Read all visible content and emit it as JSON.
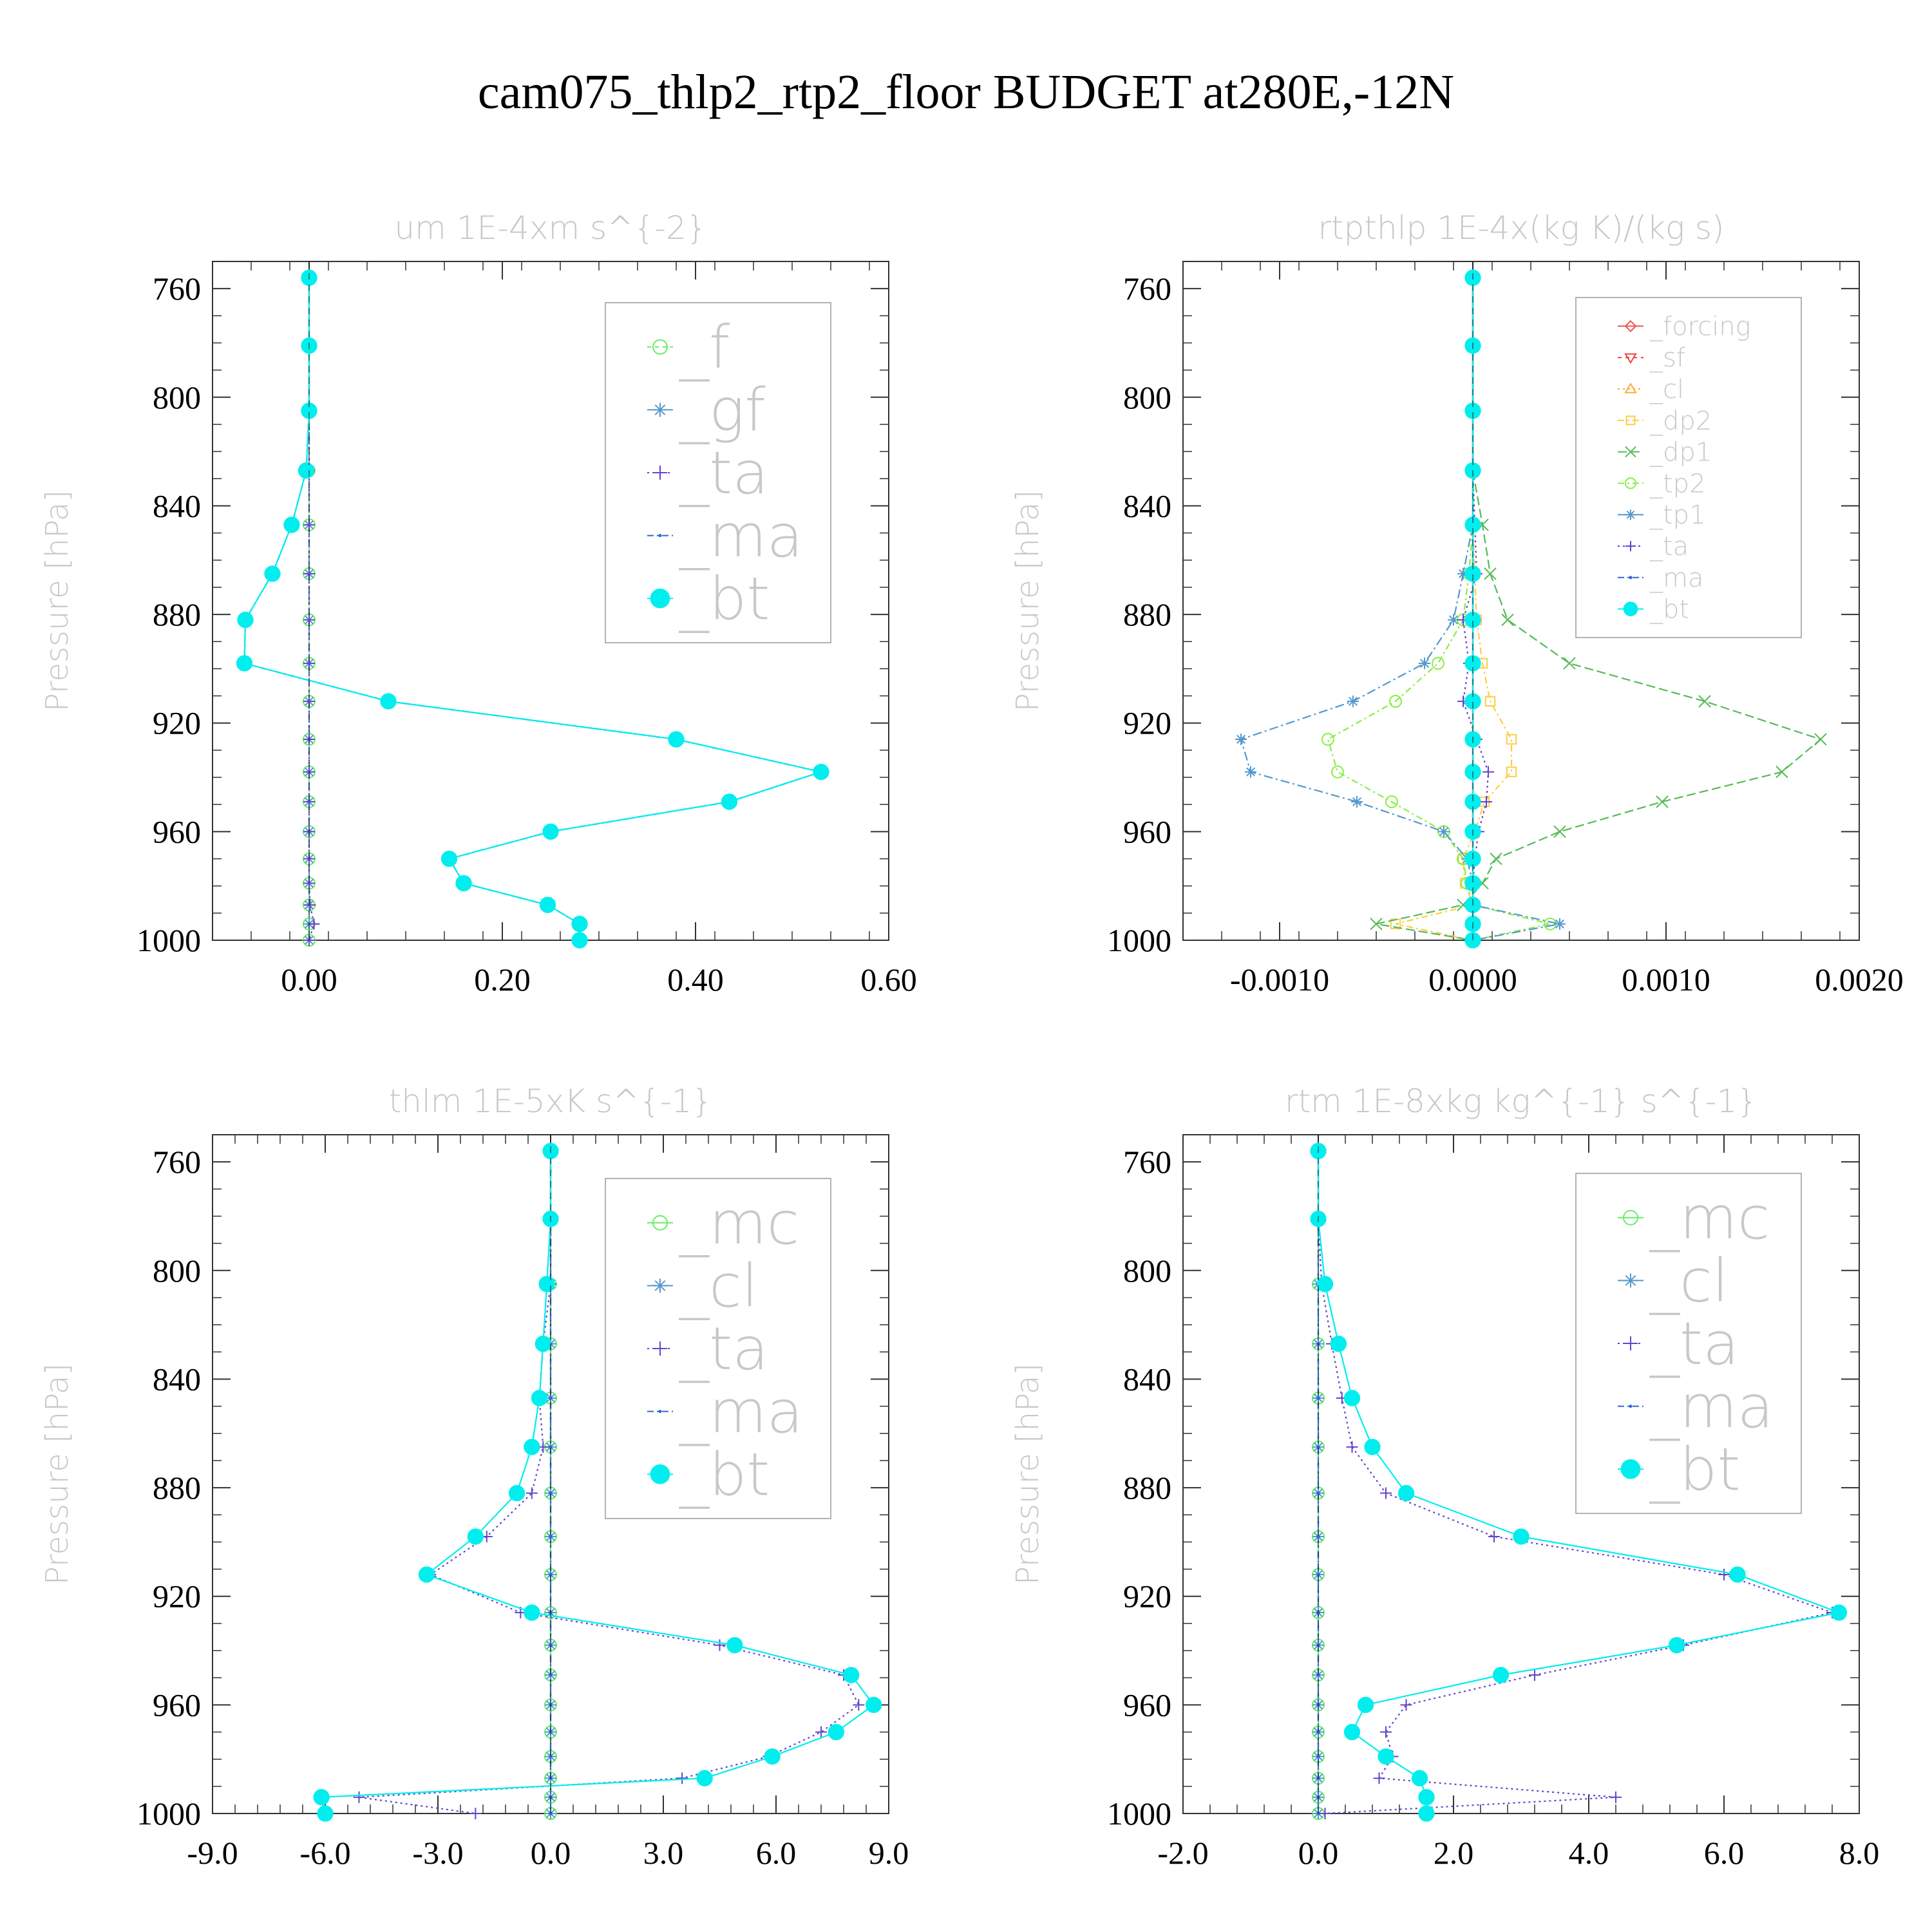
{
  "title": "cam075_thlp2_rtp2_floor  BUDGET at280E,-12N",
  "chart_data": [
    {
      "type": "line",
      "title": "um   1E-4xm s^{-2}",
      "ylabel": "Pressure [hPa]",
      "xlim": [
        -0.1,
        0.6
      ],
      "xticks": [
        0.0,
        0.2,
        0.4,
        0.6
      ],
      "xtick_labels": [
        "0.00",
        "0.20",
        "0.40",
        "0.60"
      ],
      "ylim": [
        750,
        1000
      ],
      "yticks": [
        760,
        800,
        840,
        880,
        920,
        960,
        1000
      ],
      "ytick_labels": [
        "760",
        "800",
        "840",
        "880",
        "920",
        "960",
        "1000"
      ],
      "levels": [
        756,
        781,
        805,
        827,
        847,
        865,
        882,
        898,
        912,
        926,
        938,
        949,
        960,
        970,
        979,
        987,
        994,
        1000
      ],
      "legend_font": 92,
      "series": [
        {
          "name": "_f",
          "color": "#66ee66",
          "marker": "circle-open",
          "dash": "6,6",
          "values": [
            0,
            0,
            0,
            0,
            0,
            0,
            0,
            0,
            0,
            0,
            0,
            0,
            0,
            0,
            0,
            0,
            0,
            0
          ]
        },
        {
          "name": "_gf",
          "color": "#5599cc",
          "marker": "star",
          "dash": "14,5,3,5",
          "values": [
            0,
            0,
            0,
            0,
            0,
            0,
            0,
            0,
            0,
            0,
            0,
            0,
            0,
            0,
            0,
            0,
            0,
            0
          ]
        },
        {
          "name": "_ta",
          "color": "#6644cc",
          "marker": "plus",
          "dash": "3,5",
          "values": [
            0,
            0,
            0,
            0,
            0,
            0,
            0,
            0,
            0,
            0,
            0,
            0,
            0,
            0,
            0,
            0.001,
            0.005,
            0.0
          ]
        },
        {
          "name": "_ma",
          "color": "#3366cc",
          "marker": "dot",
          "dash": "10,5,3,5",
          "values": [
            0,
            0,
            0,
            -0.003,
            -0.018,
            -0.038,
            -0.066,
            -0.067,
            0.082,
            0.38,
            0.53,
            0.435,
            0.25,
            0.145,
            0.16,
            0.247,
            0.28,
            0.28
          ]
        },
        {
          "name": "_bt",
          "color": "#00eeee",
          "marker": "filled-circle",
          "dash": "",
          "values": [
            0,
            0,
            0,
            -0.003,
            -0.018,
            -0.038,
            -0.066,
            -0.067,
            0.082,
            0.38,
            0.53,
            0.435,
            0.25,
            0.145,
            0.16,
            0.247,
            0.28,
            0.28
          ]
        }
      ]
    },
    {
      "type": "line",
      "title": "rtpthlp   1E-4x(kg K)/(kg s)",
      "ylabel": "Pressure [hPa]",
      "xlim": [
        -0.0015,
        0.002
      ],
      "xticks": [
        -0.001,
        0.0,
        0.001,
        0.002
      ],
      "xtick_labels": [
        "-0.0010",
        "0.0000",
        "0.0010",
        "0.0020"
      ],
      "ylim": [
        750,
        1000
      ],
      "yticks": [
        760,
        800,
        840,
        880,
        920,
        960,
        1000
      ],
      "ytick_labels": [
        "760",
        "800",
        "840",
        "880",
        "920",
        "960",
        "1000"
      ],
      "levels": [
        756,
        781,
        805,
        827,
        847,
        865,
        882,
        898,
        912,
        926,
        938,
        949,
        960,
        970,
        979,
        987,
        994,
        1000
      ],
      "legend_font": 40,
      "series": [
        {
          "name": "_forcing",
          "color": "#ee5555",
          "marker": "diamond",
          "dash": "",
          "values": [
            0,
            0,
            0,
            0,
            0,
            0,
            0,
            0,
            0,
            0,
            0,
            0,
            0,
            0,
            0,
            0,
            0,
            0
          ]
        },
        {
          "name": "_sf",
          "color": "#ee4444",
          "marker": "triangle-down",
          "dash": "6,6",
          "values": [
            0,
            0,
            0,
            0,
            0,
            0,
            0,
            0,
            0,
            0,
            0,
            0,
            0,
            0,
            0,
            0,
            0,
            0
          ]
        },
        {
          "name": "_cl",
          "color": "#ffaa33",
          "marker": "triangle-up",
          "dash": "3,5",
          "values": [
            0,
            0,
            0,
            0,
            0,
            0,
            0,
            0,
            0,
            0,
            0,
            0,
            0,
            0,
            0,
            0,
            0,
            0
          ]
        },
        {
          "name": "_dp2",
          "color": "#ffcc44",
          "marker": "square",
          "dash": "10,5,3,5",
          "values": [
            0,
            0,
            0,
            0,
            0,
            1e-05,
            2e-05,
            5e-05,
            9e-05,
            0.0002,
            0.0002,
            6e-05,
            1e-05,
            -5e-05,
            -4e-05,
            0.0,
            -0.0004,
            0
          ]
        },
        {
          "name": "_dp1",
          "color": "#55bb55",
          "marker": "cross",
          "dash": "14,6",
          "values": [
            0,
            0,
            0,
            0,
            5e-05,
            9e-05,
            0.00018,
            0.0005,
            0.0012,
            0.0018,
            0.0016,
            0.00098,
            0.00045,
            0.00012,
            5e-05,
            -5e-05,
            -0.0005,
            0
          ]
        },
        {
          "name": "_tp2",
          "color": "#88ee44",
          "marker": "circle-open",
          "dash": "10,5,3,5",
          "values": [
            0,
            0,
            0,
            0,
            0,
            -2e-05,
            -5e-05,
            -0.00018,
            -0.0004,
            -0.00075,
            -0.0007,
            -0.00042,
            -0.00015,
            -5e-05,
            -3e-05,
            0,
            0.0004,
            0
          ]
        },
        {
          "name": "_tp1",
          "color": "#5599cc",
          "marker": "star",
          "dash": "14,5,3,5",
          "values": [
            0,
            0,
            0,
            0,
            0,
            -5e-05,
            -0.0001,
            -0.00025,
            -0.00062,
            -0.0012,
            -0.00115,
            -0.0006,
            -0.00015,
            -3e-05,
            0,
            0,
            0.00045,
            0
          ]
        },
        {
          "name": "_ta",
          "color": "#6644cc",
          "marker": "plus",
          "dash": "3,5",
          "values": [
            0,
            0,
            0,
            0,
            1e-05,
            2e-05,
            -5e-05,
            -2e-05,
            -5e-05,
            2e-05,
            8e-05,
            7e-05,
            3e-05,
            1e-05,
            0,
            0,
            0,
            0
          ]
        },
        {
          "name": "_ma",
          "color": "#3366cc",
          "marker": "dot",
          "dash": "10,5,3,5",
          "values": [
            0,
            0,
            0,
            0,
            0,
            0,
            0,
            0,
            0,
            0,
            0,
            0,
            0,
            0,
            0,
            0,
            0,
            0
          ]
        },
        {
          "name": "_bt",
          "color": "#00eeee",
          "marker": "filled-circle",
          "dash": "",
          "values": [
            0,
            0,
            0,
            0,
            0,
            0,
            0,
            0,
            0,
            0,
            0,
            0,
            0,
            0,
            0,
            0,
            0,
            0
          ]
        }
      ]
    },
    {
      "type": "line",
      "title": "thlm   1E-5xK s^{-1}",
      "ylabel": "Pressure [hPa]",
      "xlim": [
        -9.0,
        9.0
      ],
      "xticks": [
        -9.0,
        -6.0,
        -3.0,
        0.0,
        3.0,
        6.0,
        9.0
      ],
      "xtick_labels": [
        "-9.0",
        "-6.0",
        "-3.0",
        "0.0",
        "3.0",
        "6.0",
        "9.0"
      ],
      "ylim": [
        750,
        1000
      ],
      "yticks": [
        760,
        800,
        840,
        880,
        920,
        960,
        1000
      ],
      "ytick_labels": [
        "760",
        "800",
        "840",
        "880",
        "920",
        "960",
        "1000"
      ],
      "levels": [
        756,
        781,
        805,
        827,
        847,
        865,
        882,
        898,
        912,
        926,
        938,
        949,
        960,
        970,
        979,
        987,
        994,
        1000
      ],
      "legend_font": 92,
      "series": [
        {
          "name": "_mc",
          "color": "#66ee66",
          "marker": "circle-open",
          "dash": "",
          "values": [
            0,
            0,
            0,
            0,
            0,
            0,
            0,
            0,
            0,
            0,
            0,
            0,
            0,
            0,
            0,
            0,
            0,
            0
          ]
        },
        {
          "name": "_cl",
          "color": "#5599cc",
          "marker": "star",
          "dash": "14,5,3,5",
          "values": [
            0,
            0,
            0,
            0,
            0,
            0,
            0,
            0,
            0,
            0,
            0,
            0,
            0,
            0,
            0,
            0,
            0,
            0
          ]
        },
        {
          "name": "_ta",
          "color": "#6644cc",
          "marker": "plus",
          "dash": "3,5",
          "values": [
            0,
            0,
            0,
            -0.2,
            -0.3,
            -0.2,
            -0.5,
            -1.7,
            -3.2,
            -0.8,
            4.5,
            7.8,
            8.2,
            7.2,
            5.8,
            3.5,
            -5.1,
            -2.0
          ]
        },
        {
          "name": "_ma",
          "color": "#3366cc",
          "marker": "dot",
          "dash": "10,5,3,5",
          "values": [
            0,
            0,
            0,
            0,
            0,
            0,
            0,
            0,
            0,
            0,
            0,
            0,
            0,
            0,
            0,
            0,
            0,
            0
          ]
        },
        {
          "name": "_bt",
          "color": "#00eeee",
          "marker": "filled-circle",
          "dash": "",
          "values": [
            0,
            0,
            -0.1,
            -0.2,
            -0.3,
            -0.5,
            -0.9,
            -2.0,
            -3.3,
            -0.5,
            4.9,
            8.0,
            8.6,
            7.6,
            5.9,
            4.1,
            -6.1,
            -6.0
          ]
        }
      ]
    },
    {
      "type": "line",
      "title": "rtm   1E-8xkg kg^{-1} s^{-1}",
      "ylabel": "Pressure [hPa]",
      "xlim": [
        -2.0,
        8.0
      ],
      "xticks": [
        -2.0,
        0.0,
        2.0,
        4.0,
        6.0,
        8.0
      ],
      "xtick_labels": [
        "-2.0",
        "0.0",
        "2.0",
        "4.0",
        "6.0",
        "8.0"
      ],
      "ylim": [
        750,
        1000
      ],
      "yticks": [
        760,
        800,
        840,
        880,
        920,
        960,
        1000
      ],
      "ytick_labels": [
        "760",
        "800",
        "840",
        "880",
        "920",
        "960",
        "1000"
      ],
      "levels": [
        756,
        781,
        805,
        827,
        847,
        865,
        882,
        898,
        912,
        926,
        938,
        949,
        960,
        970,
        979,
        987,
        994,
        1000
      ],
      "legend_font": 92,
      "series": [
        {
          "name": "_mc",
          "color": "#66ee66",
          "marker": "circle-open",
          "dash": "",
          "values": [
            0,
            0,
            0,
            0,
            0,
            0,
            0,
            0,
            0,
            0,
            0,
            0,
            0,
            0,
            0,
            0,
            0,
            0
          ]
        },
        {
          "name": "_cl",
          "color": "#5599cc",
          "marker": "star",
          "dash": "14,5,3,5",
          "values": [
            0,
            0,
            0,
            0,
            0,
            0,
            0,
            0,
            0,
            0,
            0,
            0,
            0,
            0,
            0,
            0,
            0,
            0
          ]
        },
        {
          "name": "_ta",
          "color": "#6644cc",
          "marker": "plus",
          "dash": "3,5",
          "values": [
            0,
            0,
            0.05,
            0.2,
            0.35,
            0.5,
            1.0,
            2.6,
            6.0,
            7.6,
            5.4,
            3.2,
            1.3,
            1.0,
            1.1,
            0.9,
            4.4,
            0.1
          ]
        },
        {
          "name": "_ma",
          "color": "#3366cc",
          "marker": "dot",
          "dash": "10,5,3,5",
          "values": [
            0,
            0,
            0,
            0,
            0,
            0,
            0,
            0,
            0,
            0,
            0,
            0,
            0,
            0,
            0,
            0,
            0,
            0
          ]
        },
        {
          "name": "_bt",
          "color": "#00eeee",
          "marker": "filled-circle",
          "dash": "",
          "values": [
            0,
            0,
            0.1,
            0.3,
            0.5,
            0.8,
            1.3,
            3.0,
            6.2,
            7.7,
            5.3,
            2.7,
            0.7,
            0.5,
            1.0,
            1.5,
            1.6,
            1.6
          ]
        }
      ]
    }
  ]
}
